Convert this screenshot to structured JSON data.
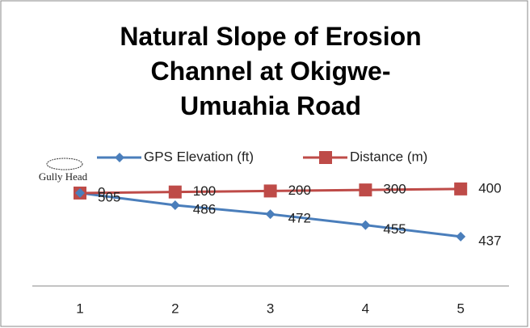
{
  "chart_data": {
    "type": "line",
    "title": "Natural Slope of Erosion Channel at Okigwe-Umuahia Road",
    "annotation": "Gully Head",
    "categories": [
      "1",
      "2",
      "3",
      "4",
      "5"
    ],
    "series": [
      {
        "name": "GPS Elevation (ft)",
        "color": "#4a7ebb",
        "marker": "diamond",
        "values": [
          505,
          486,
          472,
          455,
          437
        ]
      },
      {
        "name": "Distance (m)",
        "color": "#be4b48",
        "marker": "square",
        "axis": "y2",
        "values": [
          0,
          100,
          200,
          300,
          400
        ]
      }
    ],
    "ylim": [
      360,
      520
    ],
    "y2lim": [
      -9060,
      940
    ],
    "legend": "top"
  }
}
